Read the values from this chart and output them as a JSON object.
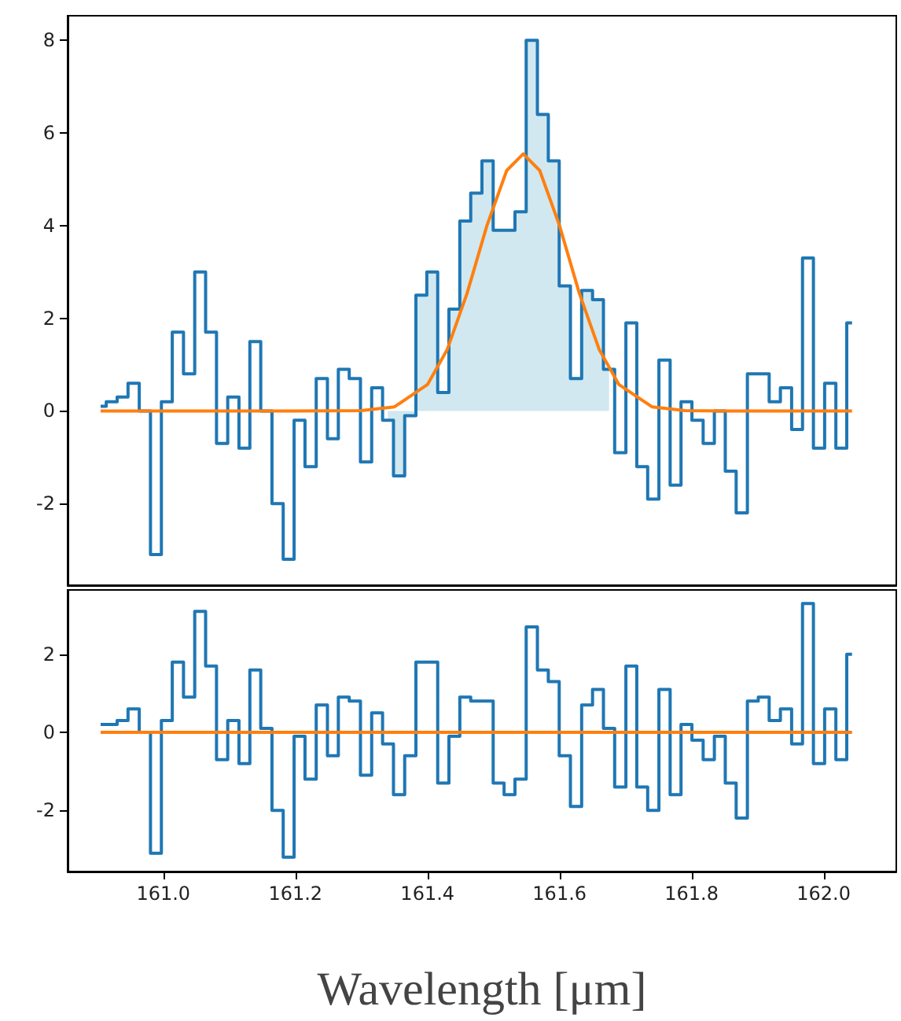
{
  "chart_data": [
    {
      "type": "step",
      "xlim": [
        160.855,
        162.11
      ],
      "ylim": [
        -3.76,
        8.53
      ],
      "yticks": [
        -2,
        0,
        2,
        4,
        6,
        8
      ],
      "tick_labels": "y",
      "x": [
        160.905,
        160.922,
        160.938,
        160.955,
        160.972,
        160.989,
        161.005,
        161.022,
        161.039,
        161.056,
        161.072,
        161.089,
        161.106,
        161.123,
        161.139,
        161.156,
        161.173,
        161.19,
        161.206,
        161.223,
        161.24,
        161.257,
        161.273,
        161.29,
        161.307,
        161.324,
        161.34,
        161.357,
        161.374,
        161.391,
        161.407,
        161.424,
        161.441,
        161.457,
        161.474,
        161.491,
        161.508,
        161.524,
        161.541,
        161.558,
        161.575,
        161.591,
        161.608,
        161.625,
        161.642,
        161.658,
        161.675,
        161.692,
        161.709,
        161.725,
        161.742,
        161.759,
        161.776,
        161.792,
        161.809,
        161.826,
        161.843,
        161.859,
        161.876,
        161.893,
        161.909,
        161.926,
        161.943,
        161.96,
        161.976,
        161.993,
        162.01,
        162.027,
        162.043
      ],
      "series": [
        {
          "color": "#1f77b4",
          "values": [
            0.1,
            0.2,
            0.3,
            0.6,
            0.0,
            -3.1,
            0.2,
            1.7,
            0.8,
            3.0,
            1.7,
            -0.7,
            0.3,
            -0.8,
            1.5,
            0.0,
            -2.0,
            -3.2,
            -0.2,
            -1.2,
            0.7,
            -0.6,
            0.9,
            0.7,
            -1.1,
            0.5,
            -0.2,
            -1.4,
            -0.1,
            2.5,
            3.0,
            0.4,
            2.2,
            4.1,
            4.7,
            5.4,
            3.9,
            3.9,
            4.3,
            8.0,
            6.4,
            5.4,
            2.7,
            0.7,
            2.6,
            2.4,
            0.9,
            -0.9,
            1.9,
            -1.2,
            -1.9,
            1.1,
            -1.6,
            0.2,
            -0.2,
            -0.7,
            0.0,
            -1.3,
            -2.2,
            0.8,
            0.8,
            0.2,
            0.5,
            -0.4,
            3.3,
            -0.8,
            0.6,
            -0.8,
            1.9
          ]
        },
        {
          "type": "line",
          "color": "#ff7f0e",
          "x": [
            160.905,
            161.2,
            161.3,
            161.35,
            161.4,
            161.43,
            161.46,
            161.49,
            161.52,
            161.545,
            161.57,
            161.6,
            161.63,
            161.66,
            161.69,
            161.74,
            161.79,
            161.85,
            162.043
          ],
          "values": [
            0,
            0,
            0.01,
            0.09,
            0.57,
            1.33,
            2.54,
            4.0,
            5.19,
            5.55,
            5.19,
            4.0,
            2.54,
            1.33,
            0.57,
            0.09,
            0.01,
            0,
            0
          ]
        },
        {
          "type": "area",
          "color": "#d1e8f0",
          "x": [
            161.34,
            161.357,
            161.374,
            161.391,
            161.407,
            161.424,
            161.441,
            161.457,
            161.474,
            161.491,
            161.508,
            161.524,
            161.541,
            161.558,
            161.575,
            161.591,
            161.608,
            161.625,
            161.642,
            161.658,
            161.675
          ],
          "values": [
            -0.2,
            -1.4,
            -0.1,
            2.5,
            3.0,
            0.4,
            2.2,
            4.1,
            4.7,
            5.4,
            3.9,
            3.9,
            4.3,
            8.0,
            6.4,
            5.4,
            2.7,
            0.7,
            2.6,
            2.4,
            0.9
          ]
        }
      ]
    },
    {
      "type": "step",
      "xlim": [
        160.855,
        162.11
      ],
      "ylim": [
        -3.57,
        3.65
      ],
      "xlabel": "Wavelength [μm]",
      "xticks": [
        {
          "value": 161,
          "label": "161.0"
        },
        {
          "value": 161.2,
          "label": "161.2"
        },
        {
          "value": 161.4,
          "label": "161.4"
        },
        {
          "value": 161.6,
          "label": "161.6"
        },
        {
          "value": 161.8,
          "label": "161.8"
        },
        {
          "value": 162,
          "label": "162.0"
        }
      ],
      "yticks": [
        -2,
        0,
        2
      ],
      "x": [
        160.905,
        160.922,
        160.938,
        160.955,
        160.972,
        160.989,
        161.005,
        161.022,
        161.039,
        161.056,
        161.072,
        161.089,
        161.106,
        161.123,
        161.139,
        161.156,
        161.173,
        161.19,
        161.206,
        161.223,
        161.24,
        161.257,
        161.273,
        161.29,
        161.307,
        161.324,
        161.34,
        161.357,
        161.374,
        161.391,
        161.407,
        161.424,
        161.441,
        161.457,
        161.474,
        161.491,
        161.508,
        161.524,
        161.541,
        161.558,
        161.575,
        161.591,
        161.608,
        161.625,
        161.642,
        161.658,
        161.675,
        161.692,
        161.709,
        161.725,
        161.742,
        161.759,
        161.776,
        161.792,
        161.809,
        161.826,
        161.843,
        161.859,
        161.876,
        161.893,
        161.909,
        161.926,
        161.943,
        161.96,
        161.976,
        161.993,
        162.01,
        162.027,
        162.043
      ],
      "series": [
        {
          "color": "#1f77b4",
          "values": [
            0.2,
            0.2,
            0.3,
            0.6,
            0.0,
            -3.1,
            0.3,
            1.8,
            0.9,
            3.1,
            1.7,
            -0.7,
            0.3,
            -0.8,
            1.6,
            0.1,
            -2.0,
            -3.2,
            -0.1,
            -1.2,
            0.7,
            -0.6,
            0.9,
            0.8,
            -1.1,
            0.5,
            -0.3,
            -1.6,
            -0.6,
            1.8,
            1.8,
            -1.3,
            -0.1,
            0.9,
            0.8,
            0.8,
            -1.3,
            -1.6,
            -1.2,
            2.7,
            1.6,
            1.3,
            -0.6,
            -1.9,
            0.7,
            1.1,
            0.1,
            -1.4,
            1.7,
            -1.4,
            -2.0,
            1.1,
            -1.6,
            0.2,
            -0.2,
            -0.7,
            -0.1,
            -1.3,
            -2.2,
            0.8,
            0.9,
            0.3,
            0.6,
            -0.3,
            3.3,
            -0.8,
            0.6,
            -0.7,
            2.0
          ]
        },
        {
          "type": "line",
          "color": "#ff7f0e",
          "x": [
            160.905,
            162.043
          ],
          "values": [
            0,
            0
          ]
        }
      ]
    }
  ]
}
